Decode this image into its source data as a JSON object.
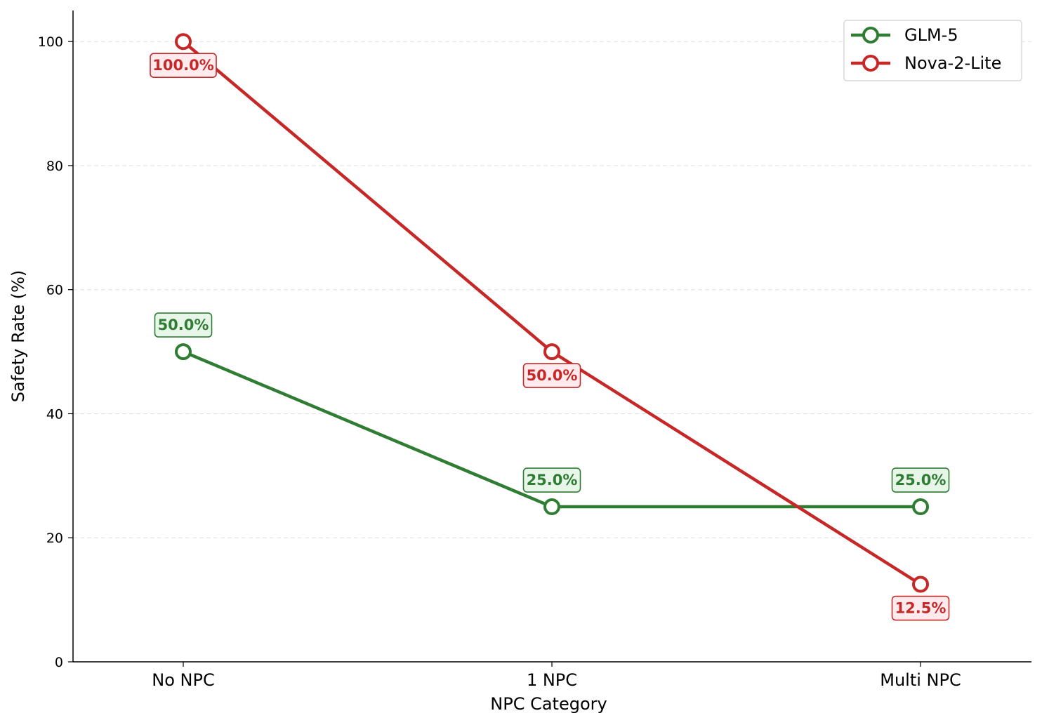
{
  "chart_data": {
    "type": "line",
    "categories": [
      "No NPC",
      "1 NPC",
      "Multi NPC"
    ],
    "series": [
      {
        "name": "GLM-5",
        "values": [
          50.0,
          25.0,
          25.0
        ],
        "color": "#2e7d32",
        "labels": [
          "50.0%",
          "25.0%",
          "25.0%"
        ],
        "label_position": "above"
      },
      {
        "name": "Nova-2-Lite",
        "values": [
          100.0,
          50.0,
          12.5
        ],
        "color": "#c62828",
        "labels": [
          "100.0%",
          "50.0%",
          "12.5%"
        ],
        "label_position": "below"
      }
    ],
    "xlabel": "NPC Category",
    "ylabel": "Safety Rate (%)",
    "ylim": [
      0,
      105
    ],
    "yticks": [
      0,
      20,
      40,
      60,
      80,
      100
    ],
    "grid": "horizontal-dashed",
    "legend_position": "top-right"
  }
}
